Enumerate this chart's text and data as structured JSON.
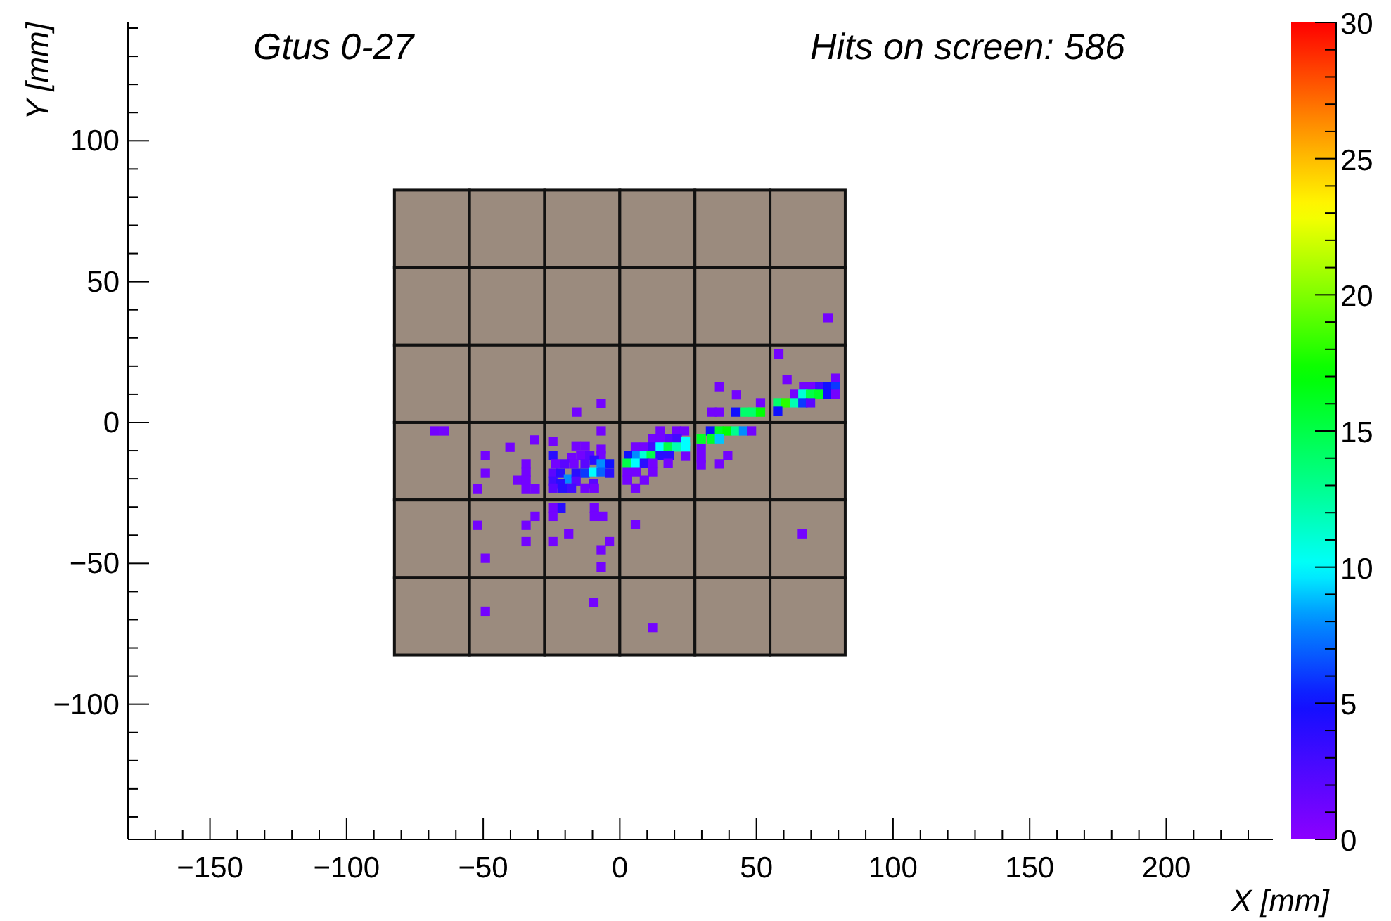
{
  "chart_data": {
    "type": "scatter",
    "title": "Gtus 0-27",
    "subtitle": "Hits on screen: 586",
    "xlabel": "X [mm]",
    "ylabel": "Y [mm]",
    "xlim": [
      -180,
      239
    ],
    "ylim": [
      -148,
      142
    ],
    "xticks": [
      {
        "value": -170,
        "label": null
      },
      {
        "value": -160,
        "label": null
      },
      -150,
      {
        "value": -140,
        "label": null
      },
      {
        "value": -130,
        "label": null
      },
      {
        "value": -120,
        "label": null
      },
      {
        "value": -110,
        "label": null
      },
      -100,
      {
        "value": -90,
        "label": null
      },
      {
        "value": -80,
        "label": null
      },
      {
        "value": -70,
        "label": null
      },
      {
        "value": -60,
        "label": null
      },
      -50,
      {
        "value": -40,
        "label": null
      },
      {
        "value": -30,
        "label": null
      },
      {
        "value": -20,
        "label": null
      },
      {
        "value": -10,
        "label": null
      },
      0,
      {
        "value": 10,
        "label": null
      },
      {
        "value": 20,
        "label": null
      },
      {
        "value": 30,
        "label": null
      },
      {
        "value": 40,
        "label": null
      },
      50,
      {
        "value": 60,
        "label": null
      },
      {
        "value": 70,
        "label": null
      },
      {
        "value": 80,
        "label": null
      },
      {
        "value": 90,
        "label": null
      },
      100,
      {
        "value": 110,
        "label": null
      },
      {
        "value": 120,
        "label": null
      },
      {
        "value": 130,
        "label": null
      },
      {
        "value": 140,
        "label": null
      },
      150,
      {
        "value": 160,
        "label": null
      },
      {
        "value": 170,
        "label": null
      },
      {
        "value": 180,
        "label": null
      },
      {
        "value": 190,
        "label": null
      },
      200,
      {
        "value": 210,
        "label": null
      },
      {
        "value": 220,
        "label": null
      },
      {
        "value": 230,
        "label": null
      }
    ],
    "yticks": [
      {
        "value": -140,
        "label": null
      },
      {
        "value": -130,
        "label": null
      },
      {
        "value": -120,
        "label": null
      },
      {
        "value": -110,
        "label": null
      },
      -100,
      {
        "value": -90,
        "label": null
      },
      {
        "value": -80,
        "label": null
      },
      {
        "value": -70,
        "label": null
      },
      {
        "value": -60,
        "label": null
      },
      -50,
      {
        "value": -40,
        "label": null
      },
      {
        "value": -30,
        "label": null
      },
      {
        "value": -20,
        "label": null
      },
      {
        "value": -10,
        "label": null
      },
      0,
      {
        "value": 10,
        "label": null
      },
      {
        "value": 20,
        "label": null
      },
      {
        "value": 30,
        "label": null
      },
      {
        "value": 40,
        "label": null
      },
      50,
      {
        "value": 60,
        "label": null
      },
      {
        "value": 70,
        "label": null
      },
      {
        "value": 80,
        "label": null
      },
      {
        "value": 90,
        "label": null
      },
      100,
      {
        "value": 110,
        "label": null
      },
      {
        "value": 120,
        "label": null
      },
      {
        "value": 130,
        "label": null
      },
      {
        "value": 140,
        "label": null
      }
    ],
    "clim": [
      0,
      30
    ],
    "cticks": [
      0,
      {
        "value": 1,
        "label": null
      },
      {
        "value": 2,
        "label": null
      },
      {
        "value": 3,
        "label": null
      },
      {
        "value": 4,
        "label": null
      },
      5,
      {
        "value": 6,
        "label": null
      },
      {
        "value": 7,
        "label": null
      },
      {
        "value": 8,
        "label": null
      },
      {
        "value": 9,
        "label": null
      },
      10,
      {
        "value": 11,
        "label": null
      },
      {
        "value": 12,
        "label": null
      },
      {
        "value": 13,
        "label": null
      },
      {
        "value": 14,
        "label": null
      },
      15,
      {
        "value": 16,
        "label": null
      },
      {
        "value": 17,
        "label": null
      },
      {
        "value": 18,
        "label": null
      },
      {
        "value": 19,
        "label": null
      },
      20,
      {
        "value": 21,
        "label": null
      },
      {
        "value": 22,
        "label": null
      },
      {
        "value": 23,
        "label": null
      },
      {
        "value": 24,
        "label": null
      },
      25,
      {
        "value": 26,
        "label": null
      },
      {
        "value": 27,
        "label": null
      },
      {
        "value": 28,
        "label": null
      },
      {
        "value": 29,
        "label": null
      },
      30
    ],
    "marker": "square",
    "grid": false,
    "x": [
      -6.8,
      -15.8,
      -6.8,
      -67.7,
      -64.3,
      -31.2,
      -40.2,
      -49.2,
      -49.2,
      -52,
      -34.3,
      -34.3,
      -37.3,
      -34.3,
      -34.3,
      -31,
      -24.5,
      -16,
      -12.7,
      -6.8,
      -24.5,
      -17.7,
      -14.3,
      -11,
      -6.8,
      -23.5,
      -20.2,
      -16.8,
      -12.7,
      -9.3,
      -6.8,
      -3.8,
      -24.5,
      -21.8,
      -18.8,
      -16,
      -12.7,
      -9.7,
      -6.8,
      -3.8,
      -24.5,
      -21.8,
      -16,
      -9.7,
      -24.5,
      -21,
      -17.7,
      -12.7,
      -9.3,
      -21.5,
      -24.5,
      -24.5,
      -9.3,
      -9.3,
      -6.3,
      -18.7,
      -24.5,
      -3.8,
      -6.8,
      -6.8,
      -9.5,
      -49.2,
      -49.2,
      -52,
      -34.3,
      -31,
      -34.3,
      76.2,
      58.2,
      61.2,
      79,
      67.3,
      70.3,
      73.2,
      76.2,
      79,
      64,
      67,
      69.8,
      72.7,
      76.2,
      79,
      57.8,
      60.7,
      64,
      67,
      69.8,
      57.8,
      36.5,
      42.7,
      51.5,
      33.7,
      36.5,
      42.3,
      45.7,
      48.7,
      51.5,
      33.2,
      36.5,
      39.3,
      42.3,
      45.3,
      48.2,
      29.8,
      33.7,
      36.5,
      29.8,
      29.8,
      29.8,
      36.5,
      39.5,
      14.8,
      20.7,
      23.7,
      12,
      14.8,
      18.2,
      21,
      24,
      5.7,
      9,
      12,
      14.8,
      17.7,
      20.7,
      24,
      3.2,
      6,
      9,
      11.5,
      14.8,
      18.2,
      24,
      2.7,
      5.7,
      9,
      12,
      17.7,
      2.7,
      6,
      12,
      2.7,
      9,
      5.7,
      5.7,
      66.8,
      12
    ],
    "values": [
      6.7,
      3.7,
      -3,
      -3,
      -3,
      -6.2,
      -8.8,
      -11.8,
      -18,
      -23.5,
      -14.7,
      -17.5,
      -20.5,
      -20.5,
      -23.5,
      -23.5,
      -6.7,
      -8.3,
      -8.3,
      -9.5,
      -11.7,
      -12.5,
      -11.7,
      -11.7,
      -11.7,
      -14.7,
      -14.7,
      -14.7,
      -14.7,
      -13.3,
      -14.7,
      -14.7,
      -18,
      -18,
      -20,
      -18,
      -18,
      -17.5,
      -17.5,
      -18,
      -20.8,
      -21.7,
      -20.8,
      -21.7,
      -23.3,
      -23.3,
      -23.3,
      -23.3,
      -23.3,
      -30.3,
      -30.3,
      -33.3,
      -30.3,
      -33.3,
      -33.3,
      -39.5,
      -42.3,
      -42.3,
      -45.2,
      -51.3,
      -63.8,
      -48.2,
      -67,
      -36.5,
      -36.5,
      -33.3,
      -42.3,
      37.2,
      24.3,
      15.3,
      15.7,
      12.8,
      12.8,
      12.8,
      12.8,
      12.8,
      10,
      10,
      10,
      10,
      10,
      10,
      7,
      7,
      7,
      7,
      7,
      4,
      12.7,
      9.8,
      7,
      3.7,
      3.7,
      3.7,
      3.7,
      3.7,
      3.7,
      -3,
      -3,
      -3,
      -3,
      -3,
      -3,
      -5.8,
      -5.8,
      -5.8,
      -9.2,
      -12.5,
      -15,
      -14.7,
      -11.7,
      -3,
      -3,
      -3,
      -5.8,
      -5.8,
      -5.8,
      -5.8,
      -6.7,
      -8.7,
      -8.7,
      -8.7,
      -8.7,
      -8.7,
      -8.7,
      -8.7,
      -11.7,
      -11.7,
      -11.7,
      -11.7,
      -11.7,
      -11.7,
      -12,
      -14.5,
      -14.5,
      -14.5,
      -14.5,
      -14.5,
      -17.5,
      -17.5,
      -17.5,
      -20.5,
      -20.5,
      -23.3,
      -36.3,
      -39.5,
      -72.8
    ],
    "cvalues": [
      1,
      1,
      1,
      1,
      1,
      1,
      1,
      1,
      1,
      1,
      1,
      1,
      1,
      1,
      1,
      1,
      1,
      1,
      1,
      1,
      4,
      1,
      1,
      2,
      1,
      1,
      2,
      1,
      2,
      4,
      8,
      5,
      2,
      4,
      8,
      4,
      6,
      10,
      7,
      4,
      3,
      4,
      2,
      2,
      2,
      4,
      3,
      1,
      1,
      4,
      1,
      1,
      1,
      1,
      1,
      1,
      1,
      1,
      1,
      1,
      1,
      1,
      1,
      1,
      1,
      1,
      1,
      1,
      1,
      1,
      1,
      1,
      1,
      3,
      5,
      6,
      1,
      11,
      15,
      16,
      5,
      1,
      14,
      18,
      12,
      6,
      2,
      5,
      1,
      1,
      1,
      1,
      1,
      5,
      14,
      14,
      17,
      5,
      16,
      17,
      13,
      8,
      1,
      16,
      16,
      9,
      1,
      1,
      1,
      1,
      1,
      1,
      1,
      1,
      1,
      1,
      2,
      3,
      10,
      1,
      1,
      3,
      10,
      15,
      12,
      10,
      5,
      8,
      11,
      15,
      4,
      4,
      1,
      15,
      10,
      4,
      1,
      1,
      1,
      1,
      1,
      1,
      1,
      1,
      1,
      1,
      1
    ]
  }
}
